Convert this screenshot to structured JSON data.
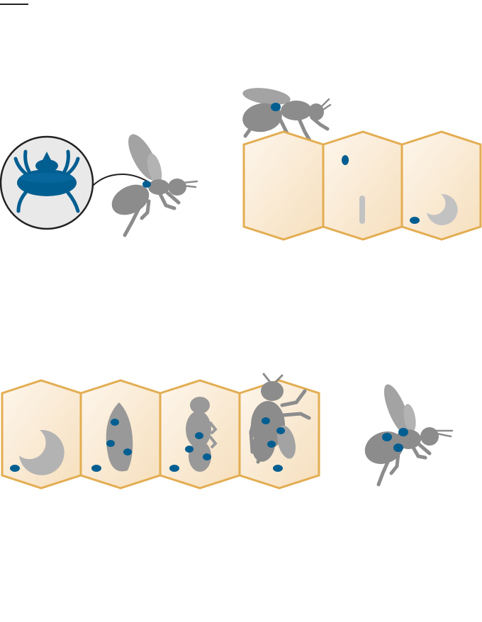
{
  "title": "",
  "colors": {
    "mite": "#005e91",
    "bee": "#8c8c8c",
    "bee_light": "#a3a3a3",
    "comb_stroke": "#e3ad52",
    "comb_fill_light": "#fdf6ec",
    "comb_fill_dark": "#f6dfbd",
    "larva": "#c2c2c2",
    "magnifier_bg": "#e9e9e9",
    "outline": "#222222"
  },
  "stages": [
    {
      "id": "phoretic-mite-on-bee",
      "icons": [
        "mite-icon",
        "bee-icon",
        "magnifier-icon"
      ]
    },
    {
      "id": "mite-enters-brood-cell",
      "icons": [
        "bee-icon",
        "comb-cell-icon",
        "egg-icon",
        "larva-icon"
      ]
    },
    {
      "id": "mites-reproduce-in-capped-cells",
      "icons": [
        "larva-icon",
        "prepupa-icon",
        "pupa-icon",
        "young-bee-icon"
      ]
    },
    {
      "id": "infested-bee-emerges",
      "icons": [
        "bee-icon",
        "mite-icon"
      ]
    }
  ]
}
